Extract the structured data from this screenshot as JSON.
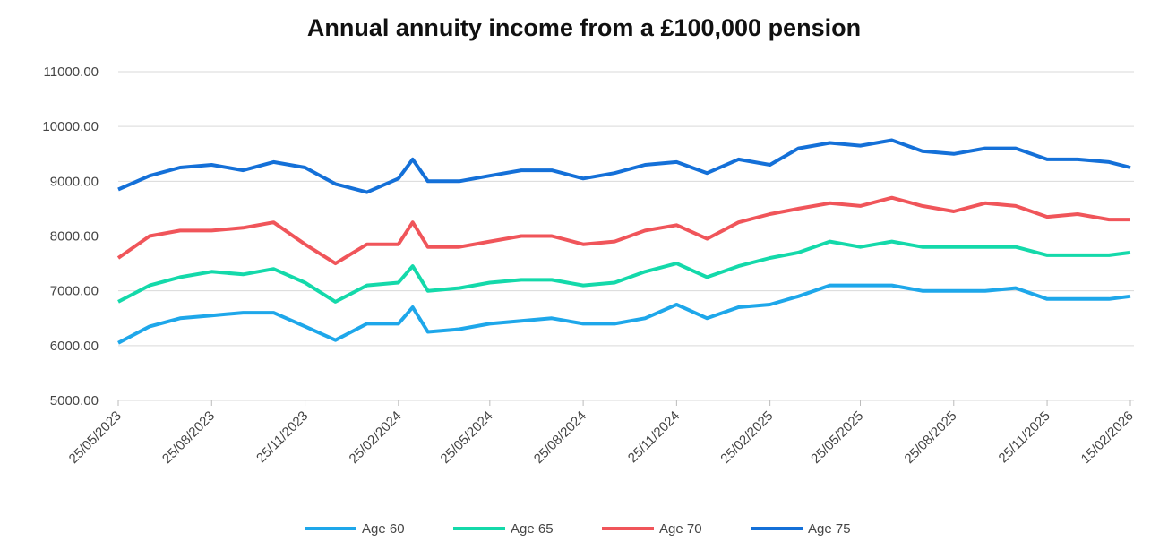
{
  "chart_data": {
    "type": "line",
    "title": "Annual annuity income from a £100,000 pension",
    "x": [
      "25/05/2023",
      "25/06/2023",
      "25/07/2023",
      "25/08/2023",
      "25/09/2023",
      "25/10/2023",
      "25/11/2023",
      "25/12/2023",
      "25/01/2024",
      "25/02/2024",
      "10/03/2024",
      "25/03/2024",
      "25/04/2024",
      "25/05/2024",
      "25/06/2024",
      "25/07/2024",
      "25/08/2024",
      "25/09/2024",
      "25/10/2024",
      "25/11/2024",
      "25/12/2024",
      "25/01/2025",
      "25/02/2025",
      "25/03/2025",
      "25/04/2025",
      "25/05/2025",
      "25/06/2025",
      "25/07/2025",
      "25/08/2025",
      "25/09/2025",
      "25/10/2025",
      "25/11/2025",
      "25/12/2025",
      "25/01/2026",
      "15/02/2026"
    ],
    "series": [
      {
        "name": "Age 60",
        "color": "#1ea7ea",
        "values": [
          6050,
          6350,
          6500,
          6550,
          6600,
          6600,
          6350,
          6100,
          6400,
          6400,
          6700,
          6250,
          6300,
          6400,
          6450,
          6500,
          6400,
          6400,
          6500,
          6750,
          6500,
          6700,
          6750,
          6900,
          7100,
          7100,
          7100,
          7000,
          7000,
          7000,
          7050,
          6850,
          6850,
          6850,
          6900
        ]
      },
      {
        "name": "Age 65",
        "color": "#14d9aa",
        "values": [
          6800,
          7100,
          7250,
          7350,
          7300,
          7400,
          7150,
          6800,
          7100,
          7150,
          7450,
          7000,
          7050,
          7150,
          7200,
          7200,
          7100,
          7150,
          7350,
          7500,
          7250,
          7450,
          7600,
          7700,
          7900,
          7800,
          7900,
          7800,
          7800,
          7800,
          7800,
          7650,
          7650,
          7650,
          7700
        ]
      },
      {
        "name": "Age 70",
        "color": "#f0555a",
        "values": [
          7600,
          8000,
          8100,
          8100,
          8150,
          8250,
          7850,
          7500,
          7850,
          7850,
          8250,
          7800,
          7800,
          7900,
          8000,
          8000,
          7850,
          7900,
          8100,
          8200,
          7950,
          8250,
          8400,
          8500,
          8600,
          8550,
          8700,
          8550,
          8450,
          8600,
          8550,
          8350,
          8400,
          8300,
          8300
        ]
      },
      {
        "name": "Age 75",
        "color": "#1470d8",
        "values": [
          8850,
          9100,
          9250,
          9300,
          9200,
          9350,
          9250,
          8950,
          8800,
          9050,
          9400,
          9000,
          9000,
          9100,
          9200,
          9200,
          9050,
          9150,
          9300,
          9350,
          9150,
          9400,
          9300,
          9600,
          9700,
          9650,
          9750,
          9550,
          9500,
          9600,
          9600,
          9400,
          9400,
          9350,
          9250
        ]
      }
    ],
    "xlim": [
      "25/05/2023",
      "15/02/2026"
    ],
    "xticks": [
      "25/05/2023",
      "25/08/2023",
      "25/11/2023",
      "25/02/2024",
      "25/05/2024",
      "25/08/2024",
      "25/11/2024",
      "25/02/2025",
      "25/05/2025",
      "25/08/2025",
      "25/11/2025",
      "15/02/2026"
    ],
    "ylim": [
      5000,
      11000
    ],
    "yticks": [
      {
        "value": 5000,
        "label": "5000.00"
      },
      {
        "value": 6000,
        "label": "6000.00"
      },
      {
        "value": 7000,
        "label": "7000.00"
      },
      {
        "value": 8000,
        "label": "8000.00"
      },
      {
        "value": 9000,
        "label": "9000.00"
      },
      {
        "value": 10000,
        "label": "10000.00"
      },
      {
        "value": 11000,
        "label": "11000.00"
      }
    ],
    "grid": true,
    "legend": "bottom"
  }
}
